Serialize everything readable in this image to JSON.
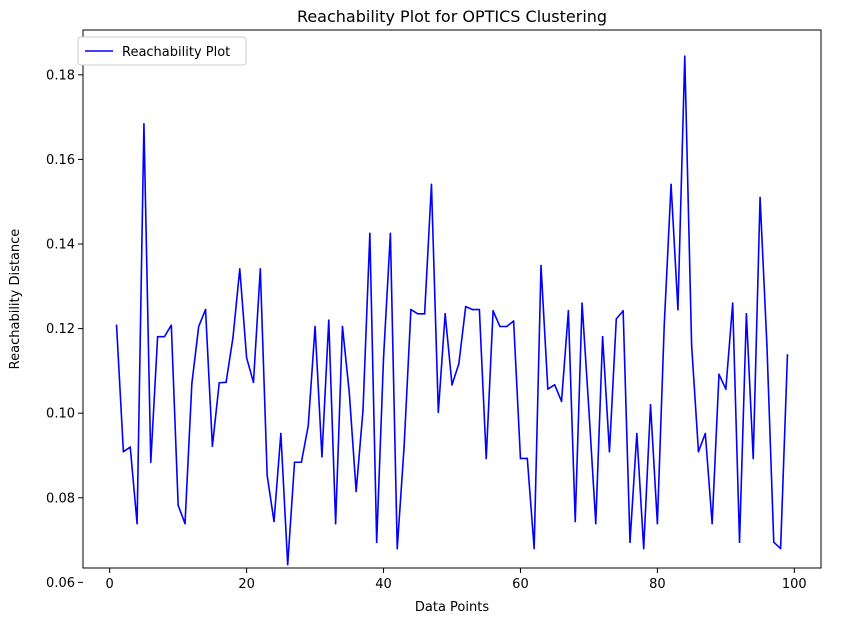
{
  "chart_data": {
    "type": "line",
    "title": "Reachability Plot for OPTICS Clustering",
    "xlabel": "Data Points",
    "ylabel": "Reachability Distance",
    "xlim": [
      -3.9,
      103.9
    ],
    "ylim": [
      0.0634,
      0.1906
    ],
    "xticks": [
      0,
      20,
      40,
      60,
      80,
      100
    ],
    "xtick_labels": [
      "0",
      "20",
      "40",
      "60",
      "80",
      "100"
    ],
    "yticks": [
      0.06,
      0.08,
      0.1,
      0.12,
      0.14,
      0.16,
      0.18
    ],
    "ytick_labels": [
      "0.06",
      "0.08",
      "0.10",
      "0.12",
      "0.14",
      "0.16",
      "0.18"
    ],
    "grid": false,
    "legend_position": "top-left",
    "series": [
      {
        "name": "Reachability Plot",
        "color": "#0000ff",
        "x": [
          1,
          2,
          3,
          4,
          5,
          6,
          7,
          8,
          9,
          10,
          11,
          12,
          13,
          14,
          15,
          16,
          17,
          18,
          19,
          20,
          21,
          22,
          23,
          24,
          25,
          26,
          27,
          28,
          29,
          30,
          31,
          32,
          33,
          34,
          35,
          36,
          37,
          38,
          39,
          40,
          41,
          42,
          43,
          44,
          45,
          46,
          47,
          48,
          49,
          50,
          51,
          52,
          53,
          54,
          55,
          56,
          57,
          58,
          59,
          60,
          61,
          62,
          63,
          64,
          65,
          66,
          67,
          68,
          69,
          70,
          71,
          72,
          73,
          74,
          75,
          76,
          77,
          78,
          79,
          80,
          81,
          82,
          83,
          84,
          85,
          86,
          87,
          88,
          89,
          90,
          91,
          92,
          93,
          94,
          95,
          96,
          97,
          98,
          99
        ],
        "values": [
          0.1208,
          0.0909,
          0.092,
          0.0739,
          0.1684,
          0.0884,
          0.1181,
          0.1181,
          0.1208,
          0.0782,
          0.0739,
          0.107,
          0.1205,
          0.1245,
          0.0922,
          0.1072,
          0.1073,
          0.1178,
          0.1341,
          0.1131,
          0.1073,
          0.1341,
          0.0853,
          0.0744,
          0.0952,
          0.0642,
          0.0884,
          0.0884,
          0.097,
          0.1205,
          0.0897,
          0.122,
          0.0739,
          0.1205,
          0.1048,
          0.0815,
          0.1007,
          0.1425,
          0.0695,
          0.1131,
          0.1425,
          0.068,
          0.092,
          0.1245,
          0.1235,
          0.1235,
          0.1541,
          0.1002,
          0.1235,
          0.1067,
          0.1117,
          0.1252,
          0.1245,
          0.1245,
          0.0893,
          0.1242,
          0.1205,
          0.1205,
          0.1218,
          0.0893,
          0.0893,
          0.068,
          0.1349,
          0.1057,
          0.1067,
          0.1028,
          0.1242,
          0.0744,
          0.126,
          0.1007,
          0.0739,
          0.1181,
          0.0909,
          0.1223,
          0.1242,
          0.0695,
          0.0952,
          0.068,
          0.102,
          0.0739,
          0.1208,
          0.1541,
          0.1245,
          0.1844,
          0.1161,
          0.0909,
          0.0952,
          0.0739,
          0.1092,
          0.1057,
          0.126,
          0.0695,
          0.1235,
          0.0893,
          0.151,
          0.1161,
          0.0695,
          0.068,
          0.1138
        ]
      }
    ]
  }
}
